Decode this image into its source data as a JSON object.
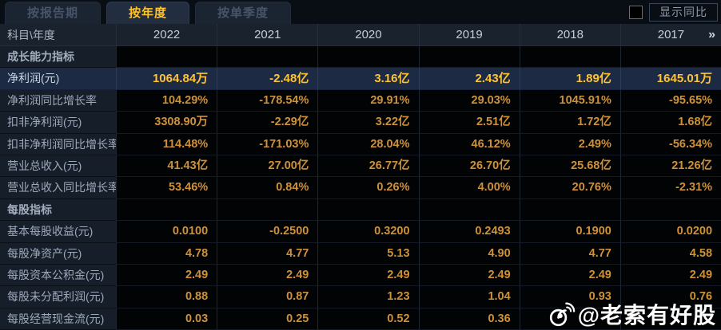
{
  "tabs": [
    {
      "label": "按报告期",
      "active": false
    },
    {
      "label": "按年度",
      "active": true
    },
    {
      "label": "按单季度",
      "active": false
    }
  ],
  "controls": {
    "show_yoy_label": "显示同比"
  },
  "table": {
    "corner_label": "科目\\年度",
    "years": [
      "2022",
      "2021",
      "2020",
      "2019",
      "2018",
      "2017"
    ],
    "more_icon": "»",
    "rows": [
      {
        "type": "section",
        "label": "成长能力指标",
        "values": [
          "",
          "",
          "",
          "",
          "",
          ""
        ]
      },
      {
        "type": "highlight",
        "label": "净利润(元)",
        "values": [
          "1064.84万",
          "-2.48亿",
          "3.16亿",
          "2.43亿",
          "1.89亿",
          "1645.01万"
        ]
      },
      {
        "type": "data",
        "label": "净利润同比增长率",
        "values": [
          "104.29%",
          "-178.54%",
          "29.91%",
          "29.03%",
          "1045.91%",
          "-95.65%"
        ]
      },
      {
        "type": "data",
        "label": "扣非净利润(元)",
        "values": [
          "3308.90万",
          "-2.29亿",
          "3.22亿",
          "2.51亿",
          "1.72亿",
          "1.68亿"
        ]
      },
      {
        "type": "data",
        "label": "扣非净利润同比增长率",
        "values": [
          "114.48%",
          "-171.03%",
          "28.04%",
          "46.12%",
          "2.49%",
          "-56.34%"
        ]
      },
      {
        "type": "data",
        "label": "营业总收入(元)",
        "values": [
          "41.43亿",
          "27.00亿",
          "26.77亿",
          "26.70亿",
          "25.68亿",
          "21.26亿"
        ]
      },
      {
        "type": "data",
        "label": "营业总收入同比增长率",
        "values": [
          "53.46%",
          "0.84%",
          "0.26%",
          "4.00%",
          "20.76%",
          "-2.31%"
        ]
      },
      {
        "type": "section",
        "label": "每股指标",
        "values": [
          "",
          "",
          "",
          "",
          "",
          ""
        ]
      },
      {
        "type": "data",
        "label": "基本每股收益(元)",
        "values": [
          "0.0100",
          "-0.2500",
          "0.3200",
          "0.2493",
          "0.1900",
          "0.0200"
        ]
      },
      {
        "type": "data",
        "label": "每股净资产(元)",
        "values": [
          "4.78",
          "4.77",
          "5.13",
          "4.90",
          "4.77",
          "4.58"
        ]
      },
      {
        "type": "data",
        "label": "每股资本公积金(元)",
        "values": [
          "2.49",
          "2.49",
          "2.49",
          "2.49",
          "2.49",
          "2.49"
        ]
      },
      {
        "type": "data",
        "label": "每股未分配利润(元)",
        "values": [
          "0.88",
          "0.87",
          "1.23",
          "1.04",
          "0.93",
          "0.76"
        ]
      },
      {
        "type": "data",
        "label": "每股经营现金流(元)",
        "values": [
          "0.03",
          "0.25",
          "0.52",
          "0.36",
          "",
          ""
        ]
      }
    ]
  },
  "watermark": {
    "text": "@老索有好股"
  },
  "colors": {
    "accent_gold": "#ffc427",
    "value_orange": "#cf9138",
    "highlight_row_bg": "#1d2a43",
    "label_cell_bg": "#161e2a",
    "header_bg": "#1a222e"
  }
}
